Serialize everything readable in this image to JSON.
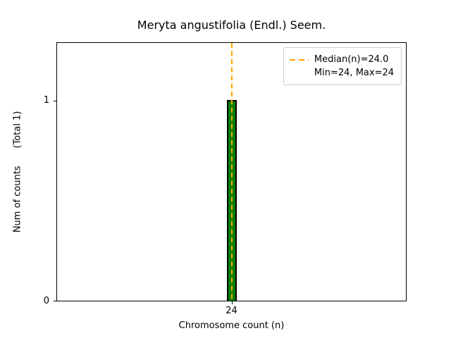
{
  "chart_data": {
    "type": "bar",
    "title": "Meryta angustifolia (Endl.) Seem.",
    "xlabel": "Chromosome count (n)",
    "ylabel": "Num of counts      (Total 1)",
    "categories": [
      "24"
    ],
    "values": [
      1
    ],
    "total_counts": 1,
    "median": 24.0,
    "min": 24,
    "max": 24,
    "ylim": [
      0,
      1.29
    ],
    "yticks": [
      0,
      1
    ],
    "ytick_labels": [
      "0",
      "1"
    ],
    "xtick_labels": [
      "24"
    ],
    "bar_color": "#008000",
    "bar_edge_color": "#000000",
    "median_line_color": "#FFA500",
    "legend_labels": [
      "Median(n)=24.0",
      "Min=24, Max=24"
    ],
    "legend_position": "upper right",
    "grid": false
  }
}
